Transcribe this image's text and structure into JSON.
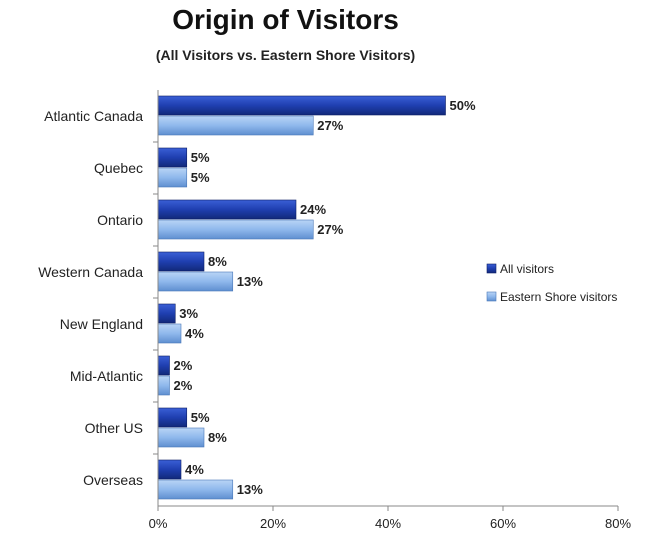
{
  "chart_data": {
    "type": "bar",
    "orientation": "horizontal",
    "title": "Origin of Visitors",
    "subtitle": "(All Visitors vs. Eastern Shore Visitors)",
    "categories": [
      "Atlantic Canada",
      "Quebec",
      "Ontario",
      "Western Canada",
      "New England",
      "Mid-Atlantic",
      "Other US",
      "Overseas"
    ],
    "series": [
      {
        "name": "All visitors",
        "values": [
          50,
          5,
          24,
          8,
          3,
          2,
          5,
          4
        ],
        "labels": [
          "50%",
          "5%",
          "24%",
          "8%",
          "3%",
          "2%",
          "5%",
          "4%"
        ],
        "color": "#1f3fb0"
      },
      {
        "name": "Eastern Shore visitors",
        "values": [
          27,
          5,
          27,
          13,
          4,
          2,
          8,
          13
        ],
        "labels": [
          "27%",
          "5%",
          "27%",
          "13%",
          "4%",
          "2%",
          "8%",
          "13%"
        ],
        "color": "#8fb8ec"
      }
    ],
    "xlim": [
      0,
      80
    ],
    "xticks": [
      0,
      20,
      40,
      60,
      80
    ],
    "xtick_labels": [
      "0%",
      "20%",
      "40%",
      "60%",
      "80%"
    ],
    "grid": false,
    "legend_position": "right"
  }
}
